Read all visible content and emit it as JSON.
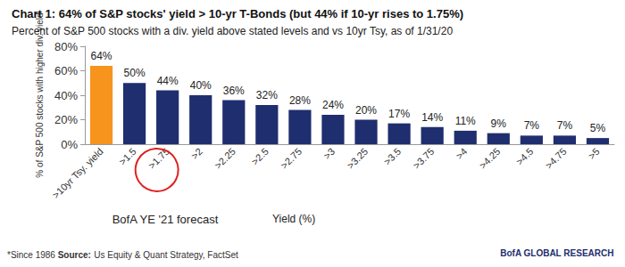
{
  "chart_data": {
    "type": "bar",
    "title": "Chart 1: 64% of S&P stocks' yield > 10-yr T-Bonds (but 44% if 10-yr rises to 1.75%)",
    "subtitle": "Percent of S&P 500 stocks with a div. yield above stated levels and vs 10yr Tsy, as of 1/31/20",
    "ylabel": "% of S&P 500 stocks with higher div. yield",
    "xlabel": "Yield (%)",
    "categories": [
      ">10yr Tsy. yield",
      ">1.5",
      ">1.75",
      ">2",
      ">2.25",
      ">2.5",
      ">2.75",
      ">3",
      ">3.25",
      ">3.5",
      ">3.75",
      ">4",
      ">4.25",
      ">4.5",
      ">4.75",
      ">5"
    ],
    "values": [
      64,
      50,
      44,
      40,
      36,
      32,
      28,
      24,
      20,
      17,
      14,
      11,
      9,
      7,
      7,
      5
    ],
    "value_labels": [
      "64%",
      "50%",
      "44%",
      "40%",
      "36%",
      "32%",
      "28%",
      "24%",
      "20%",
      "17%",
      "14%",
      "11%",
      "9%",
      "7%",
      "7%",
      "5%"
    ],
    "colors": [
      "#f7941d",
      "#1f2e6e",
      "#1f2e6e",
      "#1f2e6e",
      "#1f2e6e",
      "#1f2e6e",
      "#1f2e6e",
      "#1f2e6e",
      "#1f2e6e",
      "#1f2e6e",
      "#1f2e6e",
      "#1f2e6e",
      "#1f2e6e",
      "#1f2e6e",
      "#1f2e6e",
      "#1f2e6e"
    ],
    "ylim": [
      0,
      80
    ],
    "yticks": [
      {
        "value": 0,
        "label": "0%"
      },
      {
        "value": 20,
        "label": "20%"
      },
      {
        "value": 40,
        "label": "40%"
      },
      {
        "value": 60,
        "label": "60%"
      },
      {
        "value": 80,
        "label": "80%"
      }
    ],
    "grid": false,
    "data_labels": true,
    "annotations": [
      {
        "text": "BofA YE '21 forecast",
        "category": ">1.75"
      }
    ],
    "footnote": "*Since 1986",
    "source_label": "Source:",
    "source": "Us Equity & Quant Strategy, FactSet",
    "brand": "BofA GLOBAL RESEARCH"
  }
}
